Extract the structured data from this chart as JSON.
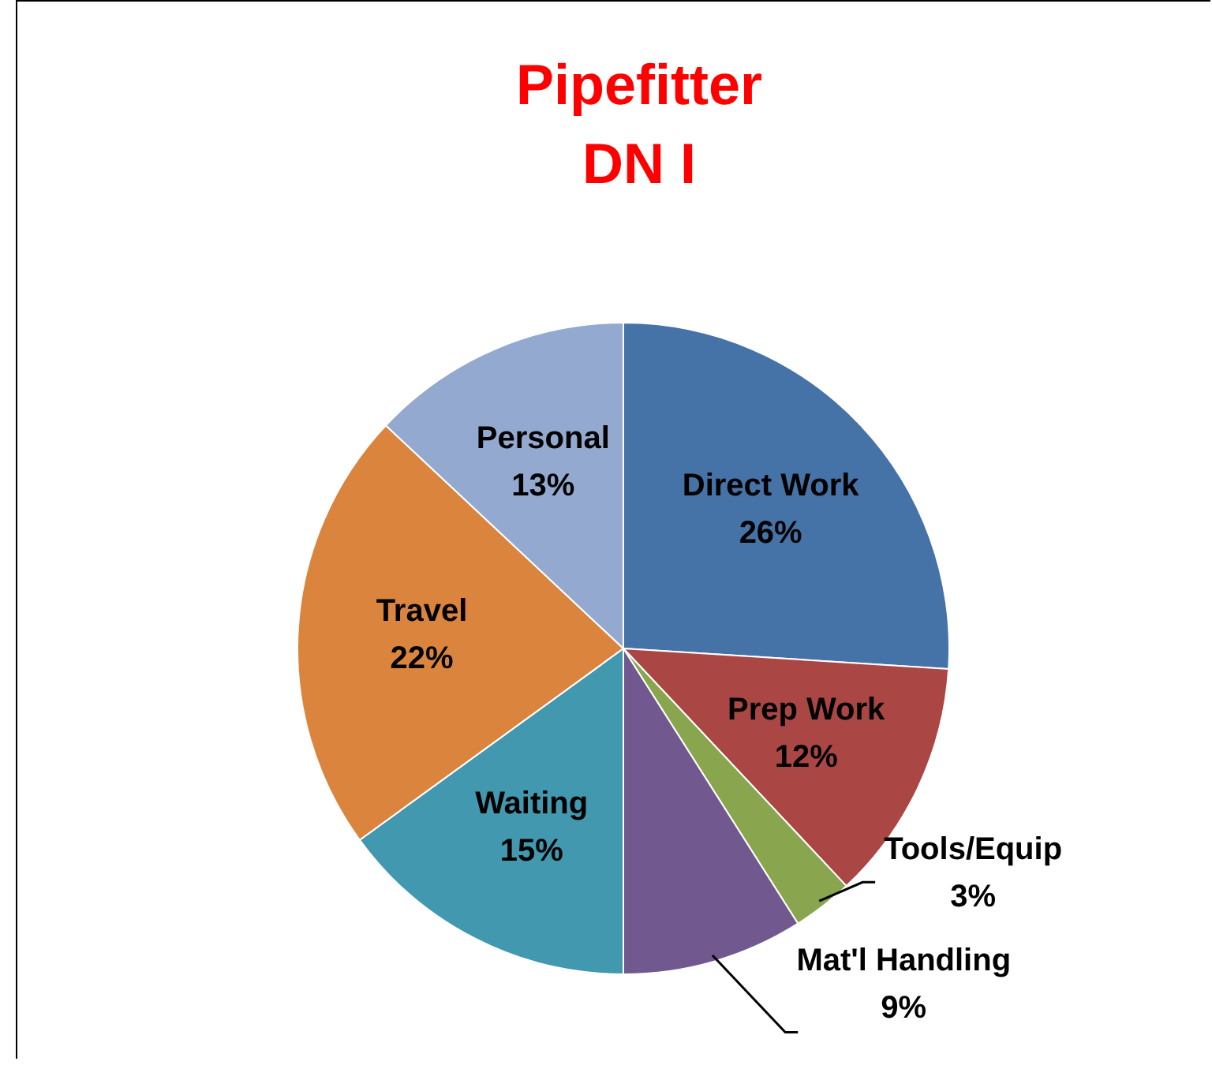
{
  "chart_data": {
    "type": "pie",
    "title": "Pipefitter\nDN I",
    "categories": [
      "Direct Work",
      "Prep Work",
      "Tools/Equip",
      "Mat'l Handling",
      "Waiting",
      "Travel",
      "Personal"
    ],
    "values": [
      26,
      12,
      3,
      9,
      15,
      22,
      13
    ],
    "colors": [
      "#4572a7",
      "#aa4643",
      "#89a54e",
      "#71588f",
      "#4198af",
      "#db843d",
      "#93a9cf"
    ],
    "value_labels": [
      "26%",
      "12%",
      "3%",
      "9%",
      "15%",
      "22%",
      "13%"
    ]
  }
}
